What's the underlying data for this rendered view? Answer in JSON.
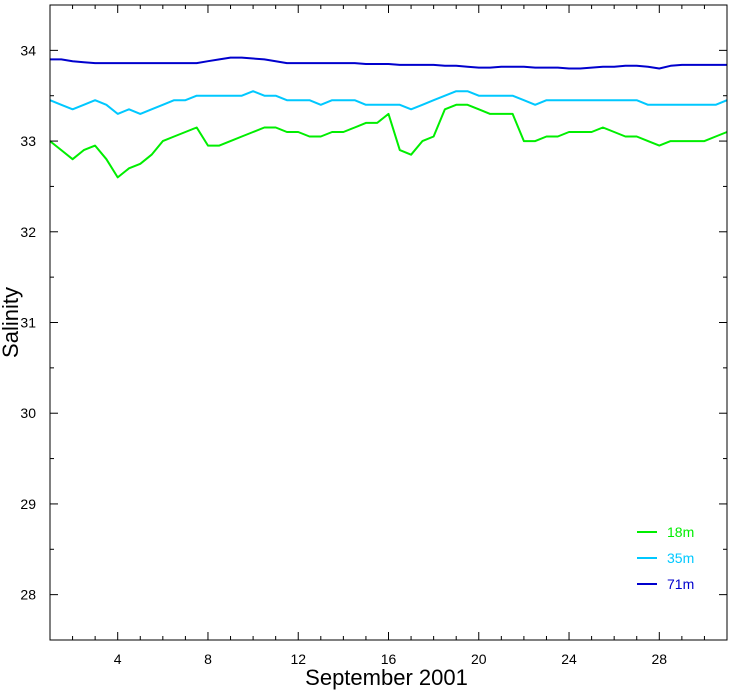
{
  "chart_data": {
    "type": "line",
    "xlabel": "September 2001",
    "ylabel": "Salinity",
    "xlim": [
      1,
      31
    ],
    "ylim": [
      27.5,
      34.5
    ],
    "x_ticks": [
      4,
      8,
      12,
      16,
      20,
      24,
      28
    ],
    "x_tick_labels": [
      "4",
      "8",
      "12",
      "16",
      "20",
      "24",
      "28"
    ],
    "y_ticks": [
      28,
      29,
      30,
      31,
      32,
      33,
      34
    ],
    "y_tick_labels": [
      "28",
      "29",
      "30",
      "31",
      "32",
      "33",
      "34"
    ],
    "grid": false,
    "legend_position": "bottom-right",
    "series": [
      {
        "name": "18m",
        "color": "#00ee00",
        "x": [
          1,
          1.5,
          2,
          2.5,
          3,
          3.5,
          4,
          4.5,
          5,
          5.5,
          6,
          6.5,
          7,
          7.5,
          8,
          8.5,
          9,
          9.5,
          10,
          10.5,
          11,
          11.5,
          12,
          12.5,
          13,
          13.5,
          14,
          14.5,
          15,
          15.5,
          16,
          16.5,
          17,
          17.5,
          18,
          18.5,
          19,
          19.5,
          20,
          20.5,
          21,
          21.5,
          22,
          22.5,
          23,
          23.5,
          24,
          24.5,
          25,
          25.5,
          26,
          26.5,
          27,
          27.5,
          28,
          28.5,
          29,
          29.5,
          30,
          30.5,
          31
        ],
        "y": [
          33.0,
          32.9,
          32.8,
          32.9,
          32.95,
          32.8,
          32.6,
          32.7,
          32.75,
          32.85,
          33.0,
          33.05,
          33.1,
          33.15,
          32.95,
          32.95,
          33.0,
          33.05,
          33.1,
          33.15,
          33.15,
          33.1,
          33.1,
          33.05,
          33.05,
          33.1,
          33.1,
          33.15,
          33.2,
          33.2,
          33.3,
          32.9,
          32.85,
          33.0,
          33.05,
          33.35,
          33.4,
          33.4,
          33.35,
          33.3,
          33.3,
          33.3,
          33.0,
          33.0,
          33.05,
          33.05,
          33.1,
          33.1,
          33.1,
          33.15,
          33.1,
          33.05,
          33.05,
          33.0,
          32.95,
          33.0,
          33.0,
          33.0,
          33.0,
          33.05,
          33.1
        ]
      },
      {
        "name": "35m",
        "color": "#00c8ff",
        "x": [
          1,
          1.5,
          2,
          2.5,
          3,
          3.5,
          4,
          4.5,
          5,
          5.5,
          6,
          6.5,
          7,
          7.5,
          8,
          8.5,
          9,
          9.5,
          10,
          10.5,
          11,
          11.5,
          12,
          12.5,
          13,
          13.5,
          14,
          14.5,
          15,
          15.5,
          16,
          16.5,
          17,
          17.5,
          18,
          18.5,
          19,
          19.5,
          20,
          20.5,
          21,
          21.5,
          22,
          22.5,
          23,
          23.5,
          24,
          24.5,
          25,
          25.5,
          26,
          26.5,
          27,
          27.5,
          28,
          28.5,
          29,
          29.5,
          30,
          30.5,
          31
        ],
        "y": [
          33.45,
          33.4,
          33.35,
          33.4,
          33.45,
          33.4,
          33.3,
          33.35,
          33.3,
          33.35,
          33.4,
          33.45,
          33.45,
          33.5,
          33.5,
          33.5,
          33.5,
          33.5,
          33.55,
          33.5,
          33.5,
          33.45,
          33.45,
          33.45,
          33.4,
          33.45,
          33.45,
          33.45,
          33.4,
          33.4,
          33.4,
          33.4,
          33.35,
          33.4,
          33.45,
          33.5,
          33.55,
          33.55,
          33.5,
          33.5,
          33.5,
          33.5,
          33.45,
          33.4,
          33.45,
          33.45,
          33.45,
          33.45,
          33.45,
          33.45,
          33.45,
          33.45,
          33.45,
          33.4,
          33.4,
          33.4,
          33.4,
          33.4,
          33.4,
          33.4,
          33.45
        ]
      },
      {
        "name": "71m",
        "color": "#0000cd",
        "x": [
          1,
          1.5,
          2,
          2.5,
          3,
          3.5,
          4,
          4.5,
          5,
          5.5,
          6,
          6.5,
          7,
          7.5,
          8,
          8.5,
          9,
          9.5,
          10,
          10.5,
          11,
          11.5,
          12,
          12.5,
          13,
          13.5,
          14,
          14.5,
          15,
          15.5,
          16,
          16.5,
          17,
          17.5,
          18,
          18.5,
          19,
          19.5,
          20,
          20.5,
          21,
          21.5,
          22,
          22.5,
          23,
          23.5,
          24,
          24.5,
          25,
          25.5,
          26,
          26.5,
          27,
          27.5,
          28,
          28.5,
          29,
          29.5,
          30,
          30.5,
          31
        ],
        "y": [
          33.9,
          33.9,
          33.88,
          33.87,
          33.86,
          33.86,
          33.86,
          33.86,
          33.86,
          33.86,
          33.86,
          33.86,
          33.86,
          33.86,
          33.88,
          33.9,
          33.92,
          33.92,
          33.91,
          33.9,
          33.88,
          33.86,
          33.86,
          33.86,
          33.86,
          33.86,
          33.86,
          33.86,
          33.85,
          33.85,
          33.85,
          33.84,
          33.84,
          33.84,
          33.84,
          33.83,
          33.83,
          33.82,
          33.81,
          33.81,
          33.82,
          33.82,
          33.82,
          33.81,
          33.81,
          33.81,
          33.8,
          33.8,
          33.81,
          33.82,
          33.82,
          33.83,
          33.83,
          33.82,
          33.8,
          33.83,
          33.84,
          33.84,
          33.84,
          33.84,
          33.84
        ]
      }
    ]
  }
}
